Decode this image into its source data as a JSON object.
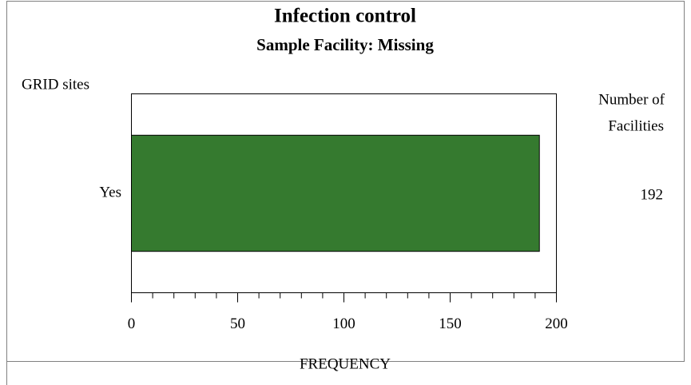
{
  "chart_data": {
    "type": "bar",
    "orientation": "horizontal",
    "title": "Infection control",
    "subtitle": "Sample Facility: Missing",
    "y_axis_label": "GRID sites",
    "value_column_header": [
      "Number of",
      "Facilities"
    ],
    "x_axis_label": "FREQUENCY",
    "categories": [
      "Yes"
    ],
    "values": [
      192
    ],
    "value_labels": [
      "192"
    ],
    "color": "#357a2f",
    "xlim": [
      0,
      200
    ],
    "xticks": [
      0,
      50,
      100,
      150,
      200
    ],
    "grid": false
  }
}
